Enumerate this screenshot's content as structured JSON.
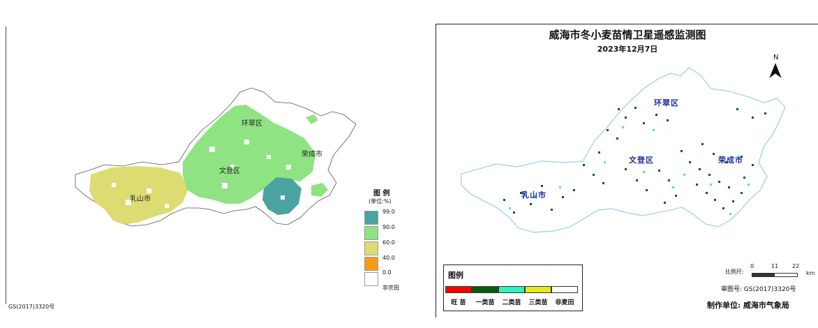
{
  "left_map": {
    "legend_title": "图 例",
    "legend_unit": "(单位:%)",
    "legend_items": [
      {
        "label": "99.0",
        "color": "#4aa3a0"
      },
      {
        "label": "90.0",
        "color": "#8fe383"
      },
      {
        "label": "60.0",
        "color": "#dcdc73"
      },
      {
        "label": "40.0",
        "color": "#f39c12"
      },
      {
        "label": "0.0",
        "color": "#ffffff"
      },
      {
        "label": "非农田",
        "color": "#ffffff"
      }
    ],
    "places": {
      "huancui": "环翠区",
      "rongcheng": "荣成市",
      "wendeng": "文登区",
      "rushan": "乳山市"
    },
    "approval": "GS(2017)3320号"
  },
  "right_map": {
    "title": "威海市冬小麦苗情卫星遥感监测图",
    "date": "2023年12月7日",
    "north": "N",
    "places": {
      "huancui": "环翠区",
      "wendeng": "文登区",
      "rongcheng": "荣成市",
      "rushan": "乳山市"
    },
    "legend_title": "图例",
    "legend_items": [
      {
        "label": "旺 苗",
        "color": "#ff0000"
      },
      {
        "label": "一类苗",
        "color": "#0a5c0a"
      },
      {
        "label": "二类苗",
        "color": "#33f0c0"
      },
      {
        "label": "三类苗",
        "color": "#e8e820"
      },
      {
        "label": "非麦田",
        "color": "#ffffff"
      }
    ],
    "scale_label": "比例尺:",
    "scale_ticks": [
      "0",
      "11",
      "22"
    ],
    "scale_unit": "km",
    "approval": "审图号: GS(2017)3320号",
    "producer": "制作单位: 威海市气象局"
  }
}
